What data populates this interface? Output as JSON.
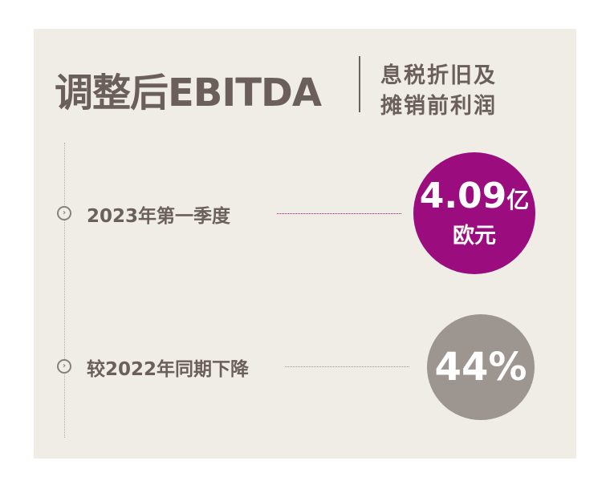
{
  "header": {
    "title": "调整后EBITDA",
    "subtitle_line1": "息税折旧及",
    "subtitle_line2": "摊销前利润"
  },
  "rows": [
    {
      "label": "2023年第一季度",
      "value": "4.09",
      "unit": "亿",
      "currency": "欧元",
      "color": "#9b0d7f"
    },
    {
      "label": "较2022年同期下降",
      "value": "44%",
      "color": "#9c9590"
    }
  ],
  "colors": {
    "background": "#f0ede7",
    "text": "#6b5f5a"
  }
}
